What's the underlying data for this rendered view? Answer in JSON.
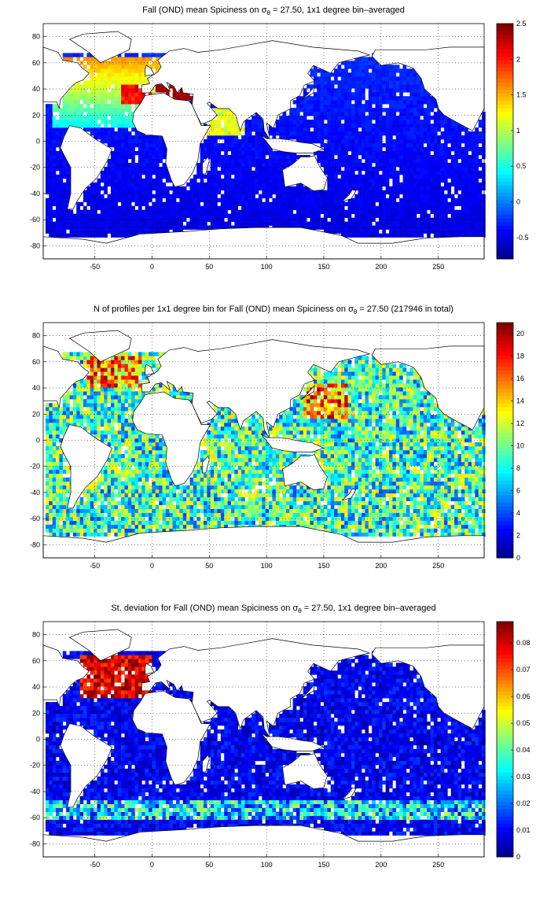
{
  "panels": [
    {
      "title_prefix": "Fall (OND) mean Spiciness on ",
      "title_symbol": "σ",
      "title_sub": "θ",
      "title_suffix": " = 27.50, 1x1 degree bin–averaged",
      "colorbar_ticks": [
        "2.5",
        "2",
        "1.5",
        "1",
        "0.5",
        "0",
        "-0.5"
      ],
      "colorbar_values": [
        2.5,
        2,
        1.5,
        1,
        0.5,
        0,
        -0.5
      ],
      "colorbar_range": [
        -0.8,
        2.5
      ]
    },
    {
      "title_prefix": "N of profiles per 1x1 degree bin for Fall (OND) mean Spiciness on ",
      "title_symbol": "σ",
      "title_sub": "θ",
      "title_suffix": " = 27.50 (217946 in total)",
      "colorbar_ticks": [
        "20",
        "18",
        "16",
        "14",
        "12",
        "10",
        "8",
        "6",
        "4",
        "2",
        "0"
      ],
      "colorbar_values": [
        20,
        18,
        16,
        14,
        12,
        10,
        8,
        6,
        4,
        2,
        0
      ],
      "colorbar_range": [
        0,
        21
      ]
    },
    {
      "title_prefix": "St. deviation for Fall (OND) mean Spiciness on ",
      "title_symbol": "σ",
      "title_sub": "θ",
      "title_suffix": " = 27.50, 1x1 degree bin–averaged",
      "colorbar_ticks": [
        "0.08",
        "0.07",
        "0.06",
        "0.05",
        "0.04",
        "0.03",
        "0.02",
        "0.01",
        "0"
      ],
      "colorbar_values": [
        0.08,
        0.07,
        0.06,
        0.05,
        0.04,
        0.03,
        0.02,
        0.01,
        0
      ],
      "colorbar_range": [
        0,
        0.088
      ]
    }
  ],
  "axes": {
    "x_ticks": [
      "-50",
      "0",
      "50",
      "100",
      "150",
      "200",
      "250"
    ],
    "x_values": [
      -50,
      0,
      50,
      100,
      150,
      200,
      250
    ],
    "x_range": [
      -95,
      290
    ],
    "y_ticks": [
      "80",
      "60",
      "40",
      "20",
      "0",
      "-20",
      "-40",
      "-60",
      "-80"
    ],
    "y_values": [
      80,
      60,
      40,
      20,
      0,
      -20,
      -40,
      -60,
      -80
    ],
    "y_range": [
      -90,
      90
    ]
  },
  "colormap": "jet",
  "grid": "dotted"
}
